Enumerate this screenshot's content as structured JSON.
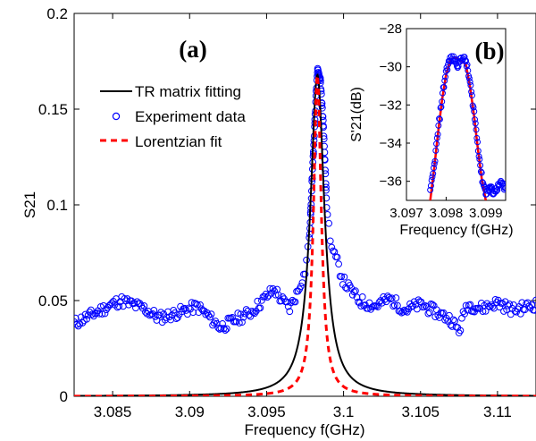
{
  "chart_data": [
    {
      "panel": "(a)",
      "type": "line",
      "xlabel": "Frequency f(GHz)",
      "ylabel": "S21",
      "xlim": [
        3.0825,
        3.1125
      ],
      "ylim": [
        0,
        0.2
      ],
      "xticks": [
        3.085,
        3.09,
        3.095,
        3.1,
        3.105,
        3.11
      ],
      "xtick_labels": [
        "3.085",
        "3.09",
        "3.095",
        "3.1",
        "3.105",
        "3.11"
      ],
      "yticks": [
        0,
        0.05,
        0.1,
        0.15,
        0.2
      ],
      "ytick_labels": [
        "0",
        "0.05",
        "0.1",
        "0.15",
        "0.2"
      ],
      "legend_position": "upper-left",
      "series": [
        {
          "name": "TR matrix fitting",
          "style": "solid",
          "color": "#000000",
          "model": "lorentzian",
          "center": 3.0983,
          "half_width": 0.00055,
          "peak": 0.168
        },
        {
          "name": "Experiment data",
          "style": "markers",
          "color": "#0000ff",
          "x": [
            3.0825,
            3.084,
            3.0855,
            3.087,
            3.088,
            3.089,
            3.0905,
            3.092,
            3.093,
            3.094,
            3.0945,
            3.095,
            3.0955,
            3.096,
            3.0965,
            3.097,
            3.0975,
            3.0978,
            3.098,
            3.0982,
            3.0983,
            3.0985,
            3.0987,
            3.0989,
            3.0992,
            3.0995,
            3.1,
            3.1005,
            3.101,
            3.102,
            3.103,
            3.104,
            3.105,
            3.106,
            3.107,
            3.1075,
            3.108,
            3.109,
            3.11,
            3.111,
            3.1125
          ],
          "y": [
            0.038,
            0.044,
            0.05,
            0.046,
            0.041,
            0.043,
            0.047,
            0.036,
            0.04,
            0.044,
            0.048,
            0.052,
            0.056,
            0.05,
            0.046,
            0.054,
            0.065,
            0.085,
            0.12,
            0.155,
            0.17,
            0.165,
            0.14,
            0.1,
            0.078,
            0.072,
            0.06,
            0.055,
            0.05,
            0.047,
            0.051,
            0.045,
            0.048,
            0.044,
            0.04,
            0.034,
            0.048,
            0.046,
            0.049,
            0.045,
            0.048
          ]
        },
        {
          "name": "Lorentzian fit",
          "style": "dashed",
          "color": "#ff0000",
          "model": "lorentzian",
          "center": 3.0983,
          "half_width": 0.0003,
          "peak": 0.168
        }
      ]
    },
    {
      "panel": "(b)",
      "type": "line",
      "xlabel": "Frequency f(GHz)",
      "ylabel": "S'21(dB)",
      "xlim": [
        3.097,
        3.0995
      ],
      "ylim": [
        -37,
        -28
      ],
      "xticks": [
        3.097,
        3.098,
        3.099
      ],
      "xtick_labels": [
        "3.097",
        "3.098",
        "3.099"
      ],
      "yticks": [
        -36,
        -34,
        -32,
        -30,
        -28
      ],
      "ytick_labels": [
        "−36",
        "−34",
        "−32",
        "−30",
        "−28"
      ],
      "series": [
        {
          "name": "Experiment data",
          "style": "markers",
          "color": "#0000ff",
          "x": [
            3.0976,
            3.0977,
            3.0978,
            3.0979,
            3.098,
            3.0981,
            3.0982,
            3.0983,
            3.0984,
            3.0985,
            3.0986,
            3.0987,
            3.0988,
            3.0989,
            3.099,
            3.0991,
            3.0992,
            3.0993,
            3.0994,
            3.0995
          ],
          "y": [
            -36.6,
            -35.2,
            -33.3,
            -31.6,
            -30.2,
            -29.6,
            -29.6,
            -29.9,
            -29.5,
            -29.7,
            -30.8,
            -32.3,
            -34.1,
            -35.8,
            -36.6,
            -36.3,
            -36.6,
            -36.3,
            -36.1,
            -36.5
          ]
        },
        {
          "name": "Lorentzian fit",
          "style": "solid",
          "color": "#ff0000",
          "x": [
            3.0976,
            3.0977,
            3.0978,
            3.0979,
            3.098,
            3.0981,
            3.0982,
            3.0983,
            3.0984,
            3.0985,
            3.0986,
            3.0987,
            3.0988,
            3.0989,
            3.099
          ],
          "y": [
            -37.0,
            -35.3,
            -33.4,
            -31.7,
            -30.4,
            -29.7,
            -29.5,
            -29.6,
            -29.7,
            -29.9,
            -31.0,
            -32.5,
            -34.3,
            -35.9,
            -37.0
          ]
        }
      ]
    }
  ]
}
